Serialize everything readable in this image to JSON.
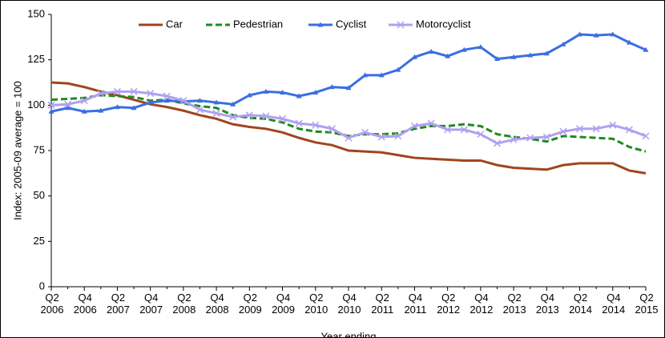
{
  "chart_data": {
    "type": "line",
    "y_label": "Index: 2005-09 average = 100",
    "x_label": "Year ending",
    "categories": [
      "Q2\n2006",
      null,
      "Q4\n2006",
      null,
      "Q2\n2007",
      null,
      "Q4\n2007",
      null,
      "Q2\n2008",
      null,
      "Q4\n2008",
      null,
      "Q2\n2009",
      null,
      "Q4\n2009",
      null,
      "Q2\n2010",
      null,
      "Q4\n2010",
      null,
      "Q2\n2011",
      null,
      "Q4\n2011",
      null,
      "Q2\n2012",
      null,
      "Q4\n2012",
      null,
      "Q2\n2013",
      null,
      "Q4\n2013",
      null,
      "Q2\n2014",
      null,
      "Q4\n2014",
      null,
      "Q2\n2015"
    ],
    "series": [
      {
        "name": "Car",
        "color": "#a0451e",
        "dash": false,
        "marker": "none",
        "values": [
          112.5,
          112,
          110,
          107.5,
          105.5,
          103,
          100.5,
          99,
          97,
          94.5,
          92.5,
          89.5,
          88,
          87,
          85,
          82,
          79.5,
          78,
          75,
          74.5,
          74,
          72.5,
          71,
          70.5,
          70,
          69.5,
          69.5,
          67,
          65.5,
          65,
          64.5,
          67,
          68,
          68,
          68,
          64,
          62.5
        ]
      },
      {
        "name": "Pedestrian",
        "color": "#1f8a1f",
        "dash": true,
        "marker": "none",
        "values": [
          103,
          103.5,
          104,
          105.5,
          105,
          104.5,
          102.5,
          103,
          101,
          99.5,
          98.5,
          94.5,
          93,
          92.5,
          90.5,
          87,
          85.5,
          85,
          83,
          84,
          84,
          84.5,
          87,
          88.5,
          88.5,
          89.5,
          88.5,
          84,
          82.5,
          81.5,
          80,
          83,
          82.5,
          82,
          81.5,
          77,
          74.5
        ]
      },
      {
        "name": "Cyclist",
        "color": "#3a6fe0",
        "dash": false,
        "marker": "triangle",
        "values": [
          96.5,
          98.5,
          96.5,
          97,
          99,
          98.5,
          101.5,
          102.5,
          102,
          102.5,
          101.5,
          100.5,
          105.5,
          107.5,
          107,
          105,
          107,
          110,
          109.5,
          116.5,
          116.5,
          119.5,
          126.5,
          129.5,
          127,
          130.5,
          132,
          125.5,
          126.5,
          127.5,
          128.5,
          133.5,
          139,
          138.5,
          139,
          134.5,
          130.5
        ]
      },
      {
        "name": "Motorcyclist",
        "color": "#b0a0f0",
        "dash": false,
        "marker": "cross",
        "values": [
          100,
          100.5,
          102.5,
          106.5,
          107.5,
          107.5,
          106.5,
          105,
          102.5,
          97.5,
          95.5,
          93.5,
          94.5,
          94,
          92.5,
          90,
          89,
          87,
          82,
          85,
          82.5,
          83,
          88.5,
          90,
          86.5,
          86.5,
          84,
          79,
          81,
          82,
          82.5,
          85.5,
          87,
          87,
          89,
          86.5,
          83
        ]
      }
    ],
    "ylim": [
      0,
      150
    ],
    "yticks": [
      0,
      25,
      50,
      75,
      100,
      125,
      150
    ],
    "grid": false,
    "legend": "top"
  }
}
